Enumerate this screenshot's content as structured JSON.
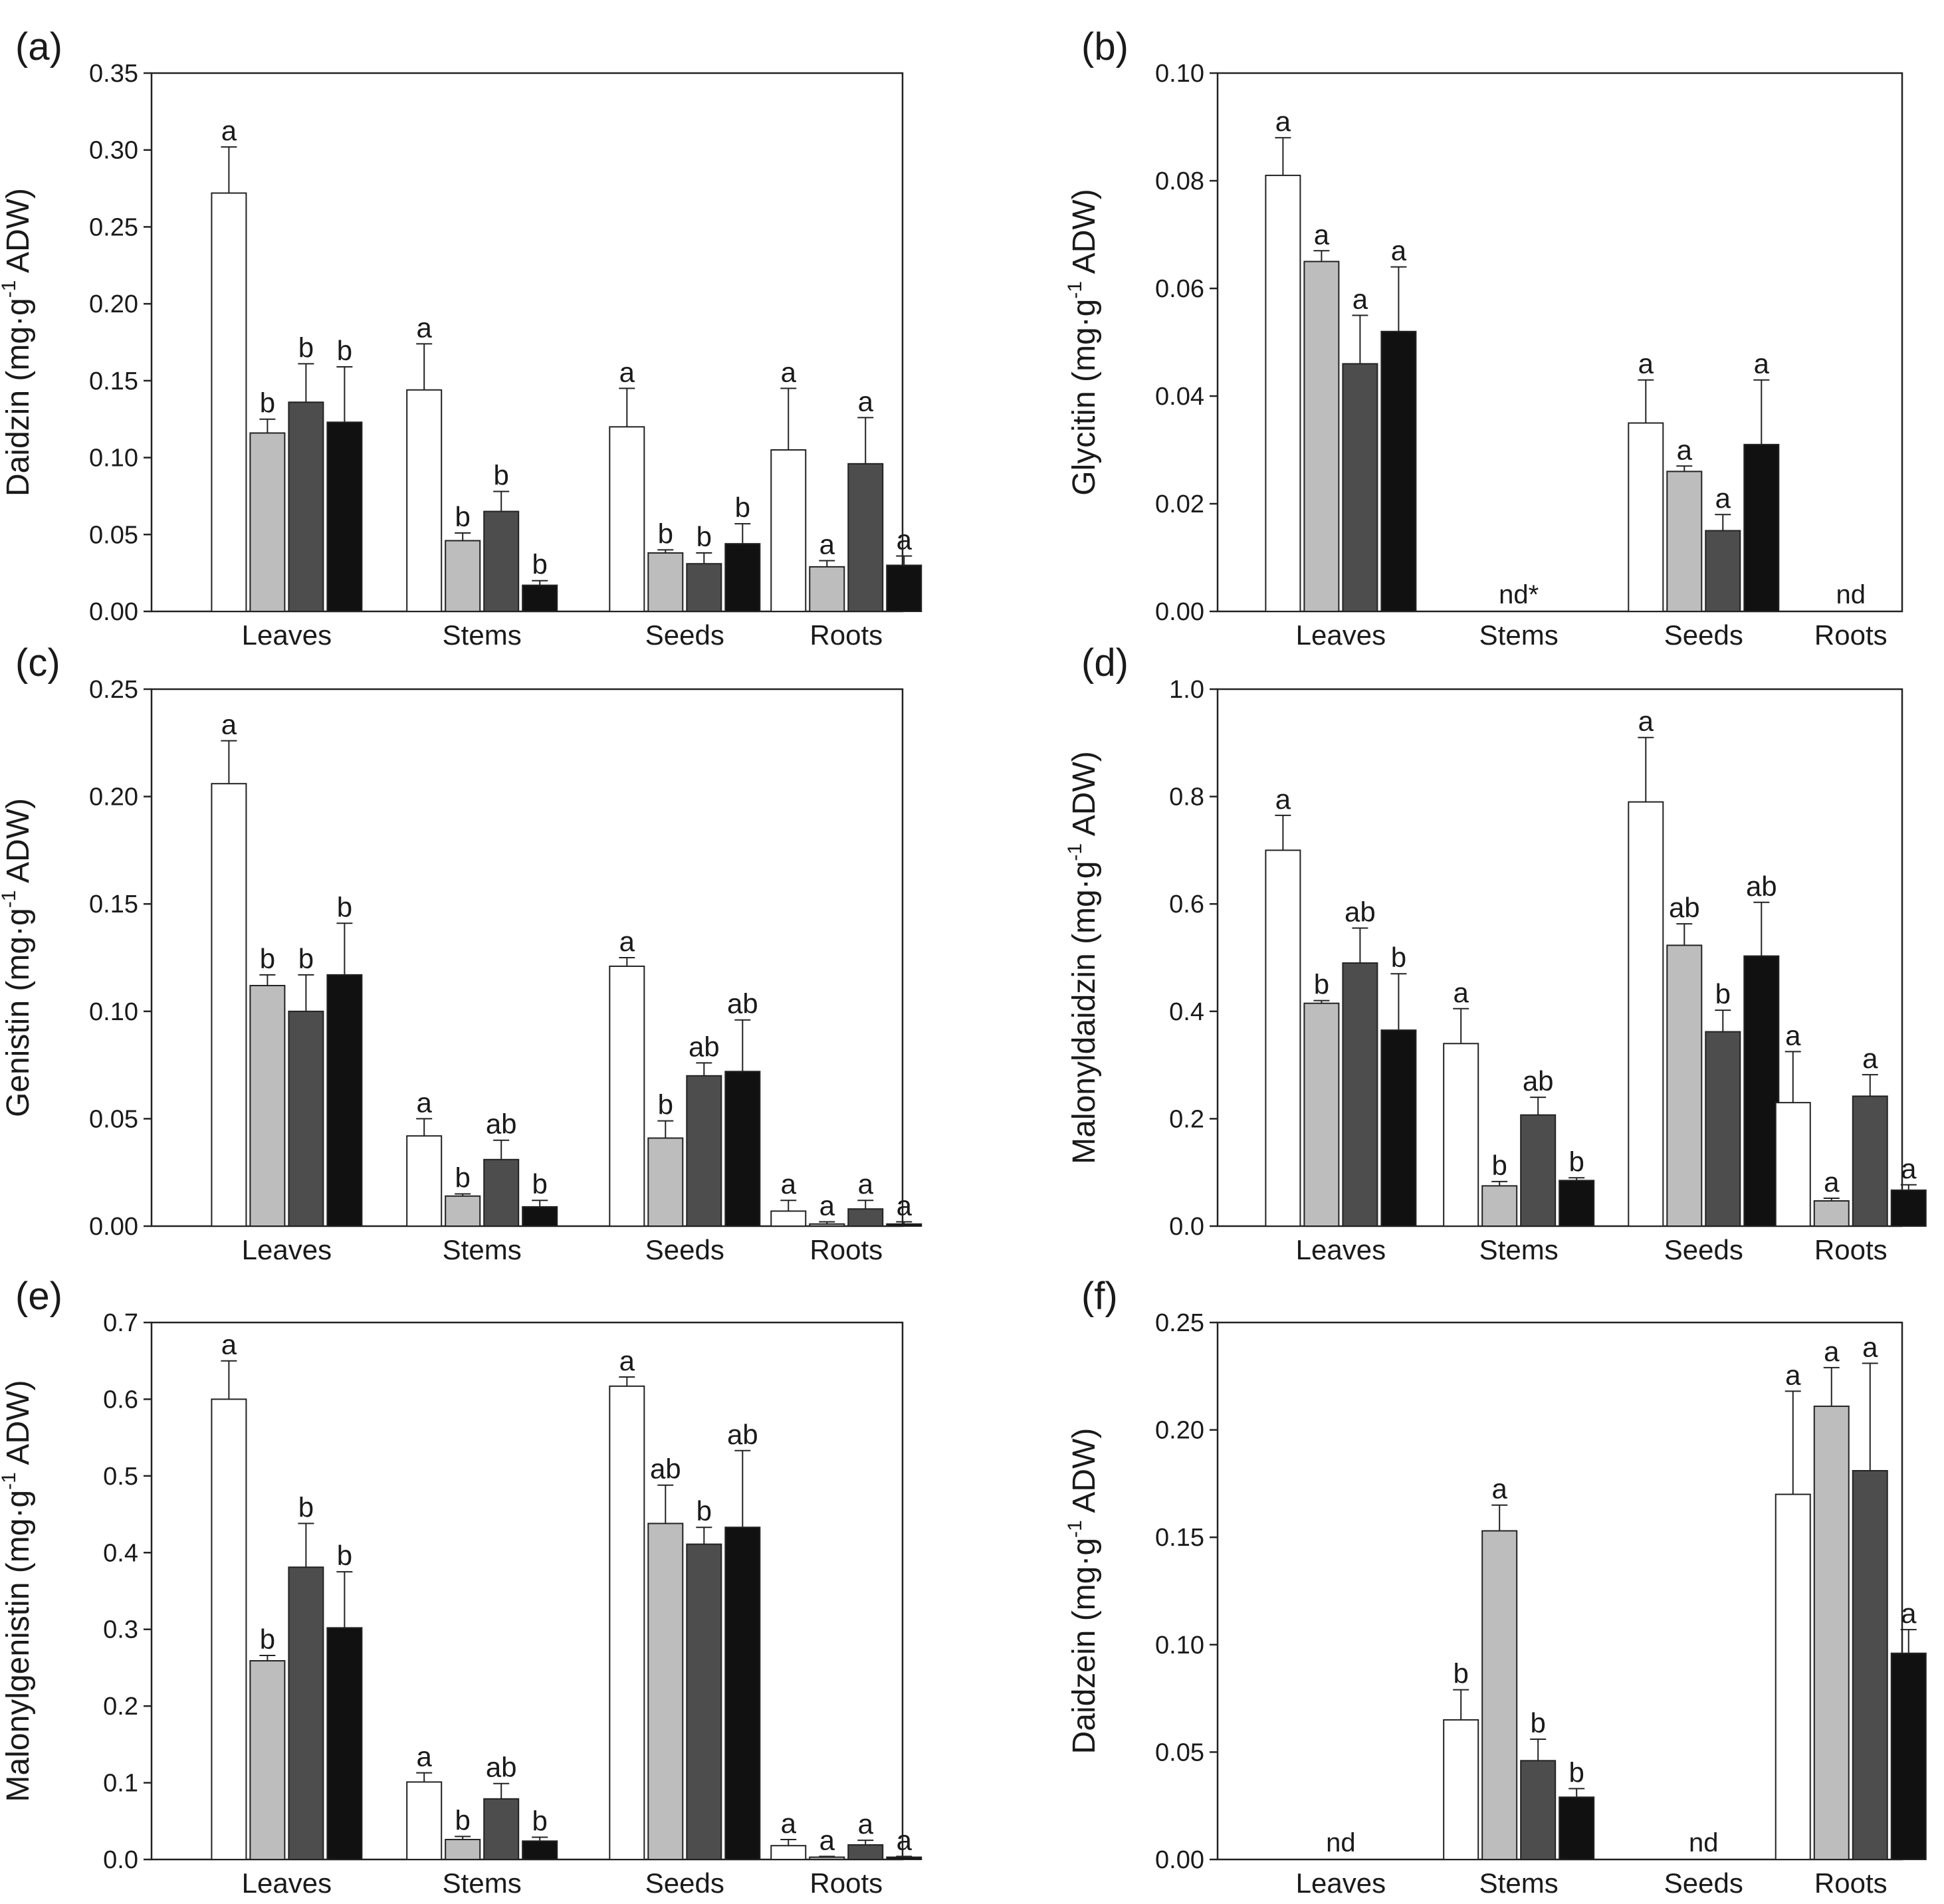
{
  "colors": {
    "series": [
      "#ffffff",
      "#bdbdbd",
      "#4d4d4d",
      "#111111"
    ],
    "stroke": "#222222"
  },
  "chart_data": [
    {
      "type": "bar",
      "panel": "(a)",
      "ylabel_main": "Daidzin (mg·g",
      "ylabel_sup": "-1",
      "ylabel_end": " ADW)",
      "ylim": [
        0,
        0.35
      ],
      "ticks": [
        "0.00",
        "0.05",
        "0.10",
        "0.15",
        "0.20",
        "0.25",
        "0.30",
        "0.35"
      ],
      "categories": [
        "Leaves",
        "Stems",
        "Seeds",
        "Roots"
      ],
      "values": [
        [
          0.272,
          0.116,
          0.136,
          0.123
        ],
        [
          0.144,
          0.046,
          0.065,
          0.017
        ],
        [
          0.12,
          0.038,
          0.031,
          0.044
        ],
        [
          0.105,
          0.029,
          0.096,
          0.03
        ]
      ],
      "errors": [
        [
          0.03,
          0.009,
          0.025,
          0.036
        ],
        [
          0.03,
          0.005,
          0.013,
          0.003
        ],
        [
          0.025,
          0.002,
          0.007,
          0.013
        ],
        [
          0.04,
          0.004,
          0.03,
          0.006
        ]
      ],
      "letters": [
        [
          "a",
          "b",
          "b",
          "b"
        ],
        [
          "a",
          "b",
          "b",
          "b"
        ],
        [
          "a",
          "b",
          "b",
          "b"
        ],
        [
          "a",
          "a",
          "a",
          "a"
        ]
      ],
      "nd": [
        "",
        "",
        "",
        ""
      ]
    },
    {
      "type": "bar",
      "panel": "(b)",
      "ylabel_main": "Glycitin (mg·g",
      "ylabel_sup": "-1",
      "ylabel_end": " ADW)",
      "ylim": [
        0,
        0.1
      ],
      "ticks": [
        "0.00",
        "0.02",
        "0.04",
        "0.06",
        "0.08",
        "0.10"
      ],
      "categories": [
        "Leaves",
        "Stems",
        "Seeds",
        "Roots"
      ],
      "values": [
        [
          0.081,
          0.065,
          0.046,
          0.052
        ],
        [
          null,
          null,
          null,
          null
        ],
        [
          0.035,
          0.026,
          0.015,
          0.031
        ],
        [
          null,
          null,
          null,
          null
        ]
      ],
      "errors": [
        [
          0.007,
          0.002,
          0.009,
          0.012
        ],
        [
          0,
          0,
          0,
          0
        ],
        [
          0.008,
          0.001,
          0.003,
          0.012
        ],
        [
          0,
          0,
          0,
          0
        ]
      ],
      "letters": [
        [
          "a",
          "a",
          "a",
          "a"
        ],
        [
          "",
          "",
          "",
          ""
        ],
        [
          "a",
          "a",
          "a",
          "a"
        ],
        [
          "",
          "",
          "",
          ""
        ]
      ],
      "nd": [
        "",
        "nd*",
        "",
        "nd"
      ]
    },
    {
      "type": "bar",
      "panel": "(c)",
      "ylabel_main": "Genistin (mg·g",
      "ylabel_sup": "-1",
      "ylabel_end": " ADW)",
      "ylim": [
        0,
        0.25
      ],
      "ticks": [
        "0.00",
        "0.05",
        "0.10",
        "0.15",
        "0.20",
        "0.25"
      ],
      "categories": [
        "Leaves",
        "Stems",
        "Seeds",
        "Roots"
      ],
      "values": [
        [
          0.206,
          0.112,
          0.1,
          0.117
        ],
        [
          0.042,
          0.014,
          0.031,
          0.009
        ],
        [
          0.121,
          0.041,
          0.07,
          0.072
        ],
        [
          0.007,
          0.001,
          0.008,
          0.001
        ]
      ],
      "errors": [
        [
          0.02,
          0.005,
          0.017,
          0.024
        ],
        [
          0.008,
          0.001,
          0.009,
          0.003
        ],
        [
          0.004,
          0.008,
          0.006,
          0.024
        ],
        [
          0.005,
          0.001,
          0.004,
          0.001
        ]
      ],
      "letters": [
        [
          "a",
          "b",
          "b",
          "b"
        ],
        [
          "a",
          "b",
          "ab",
          "b"
        ],
        [
          "a",
          "b",
          "ab",
          "ab"
        ],
        [
          "a",
          "a",
          "a",
          "a"
        ]
      ],
      "nd": [
        "",
        "",
        "",
        ""
      ]
    },
    {
      "type": "bar",
      "panel": "(d)",
      "ylabel_main": "Malonyldaidzin (mg·g",
      "ylabel_sup": "-1",
      "ylabel_end": " ADW)",
      "ylim": [
        0,
        1.0
      ],
      "ticks": [
        "0.0",
        "0.2",
        "0.4",
        "0.6",
        "0.8",
        "1.0"
      ],
      "categories": [
        "Leaves",
        "Stems",
        "Seeds",
        "Roots"
      ],
      "values": [
        [
          0.7,
          0.415,
          0.49,
          0.365
        ],
        [
          0.34,
          0.075,
          0.207,
          0.085
        ],
        [
          0.79,
          0.523,
          0.362,
          0.503
        ],
        [
          0.23,
          0.047,
          0.242,
          0.067
        ]
      ],
      "errors": [
        [
          0.065,
          0.005,
          0.065,
          0.105
        ],
        [
          0.065,
          0.008,
          0.033,
          0.005
        ],
        [
          0.12,
          0.04,
          0.04,
          0.1
        ],
        [
          0.095,
          0.005,
          0.04,
          0.01
        ]
      ],
      "letters": [
        [
          "a",
          "b",
          "ab",
          "b"
        ],
        [
          "a",
          "b",
          "ab",
          "b"
        ],
        [
          "a",
          "ab",
          "b",
          "ab"
        ],
        [
          "a",
          "a",
          "a",
          "a"
        ]
      ],
      "nd": [
        "",
        "",
        "",
        ""
      ]
    },
    {
      "type": "bar",
      "panel": "(e)",
      "ylabel_main": "Malonylgenistin (mg·g",
      "ylabel_sup": "-1",
      "ylabel_end": " ADW)",
      "ylim": [
        0,
        0.7
      ],
      "ticks": [
        "0.0",
        "0.1",
        "0.2",
        "0.3",
        "0.4",
        "0.5",
        "0.6",
        "0.7"
      ],
      "categories": [
        "Leaves",
        "Stems",
        "Seeds",
        "Roots"
      ],
      "values": [
        [
          0.6,
          0.259,
          0.381,
          0.302
        ],
        [
          0.101,
          0.026,
          0.079,
          0.024
        ],
        [
          0.617,
          0.438,
          0.411,
          0.433
        ],
        [
          0.018,
          0.003,
          0.019,
          0.003
        ]
      ],
      "errors": [
        [
          0.05,
          0.007,
          0.057,
          0.073
        ],
        [
          0.012,
          0.004,
          0.02,
          0.005
        ],
        [
          0.012,
          0.05,
          0.022,
          0.1
        ],
        [
          0.008,
          0.001,
          0.006,
          0.001
        ]
      ],
      "letters": [
        [
          "a",
          "b",
          "b",
          "b"
        ],
        [
          "a",
          "b",
          "ab",
          "b"
        ],
        [
          "a",
          "ab",
          "b",
          "ab"
        ],
        [
          "a",
          "a",
          "a",
          "a"
        ]
      ],
      "nd": [
        "",
        "",
        "",
        ""
      ]
    },
    {
      "type": "bar",
      "panel": "(f)",
      "ylabel_main": "Daidzein (mg·g",
      "ylabel_sup": "-1",
      "ylabel_end": " ADW)",
      "ylim": [
        0,
        0.25
      ],
      "ticks": [
        "0.00",
        "0.05",
        "0.10",
        "0.15",
        "0.20",
        "0.25"
      ],
      "categories": [
        "Leaves",
        "Stems",
        "Seeds",
        "Roots"
      ],
      "values": [
        [
          null,
          null,
          null,
          null
        ],
        [
          0.065,
          0.153,
          0.046,
          0.029
        ],
        [
          null,
          null,
          null,
          null
        ],
        [
          0.17,
          0.211,
          0.181,
          0.096
        ]
      ],
      "errors": [
        [
          0,
          0,
          0,
          0
        ],
        [
          0.014,
          0.012,
          0.01,
          0.004
        ],
        [
          0,
          0,
          0,
          0
        ],
        [
          0.048,
          0.018,
          0.05,
          0.011
        ]
      ],
      "letters": [
        [
          "",
          "",
          "",
          ""
        ],
        [
          "b",
          "a",
          "b",
          "b"
        ],
        [
          "",
          "",
          "",
          ""
        ],
        [
          "a",
          "a",
          "a",
          "a"
        ]
      ],
      "nd": [
        "nd",
        "",
        "nd",
        ""
      ]
    }
  ]
}
